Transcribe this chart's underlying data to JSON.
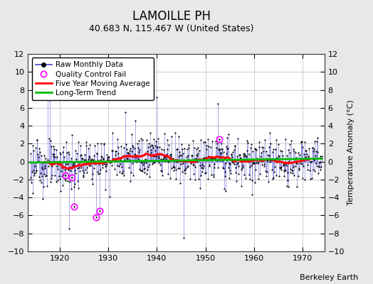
{
  "title": "LAMOILLE PH",
  "subtitle": "40.683 N, 115.467 W (United States)",
  "ylabel": "Temperature Anomaly (°C)",
  "attribution": "Berkeley Earth",
  "year_start": 1914,
  "year_end": 1973,
  "ylim": [
    -10,
    12
  ],
  "yticks": [
    -10,
    -8,
    -6,
    -4,
    -2,
    0,
    2,
    4,
    6,
    8,
    10,
    12
  ],
  "xticks": [
    1920,
    1930,
    1940,
    1950,
    1960,
    1970
  ],
  "bg_color": "#e8e8e8",
  "plot_bg_color": "#ffffff",
  "grid_color": "#cccccc",
  "raw_line_color": "#4444cc",
  "raw_marker_color": "#000000",
  "moving_avg_color": "#ff0000",
  "trend_color": "#00bb00",
  "qc_fail_color": "#ff00ff",
  "title_fontsize": 12,
  "subtitle_fontsize": 9,
  "tick_fontsize": 8,
  "ylabel_fontsize": 8,
  "legend_fontsize": 7.5,
  "seed": 123
}
